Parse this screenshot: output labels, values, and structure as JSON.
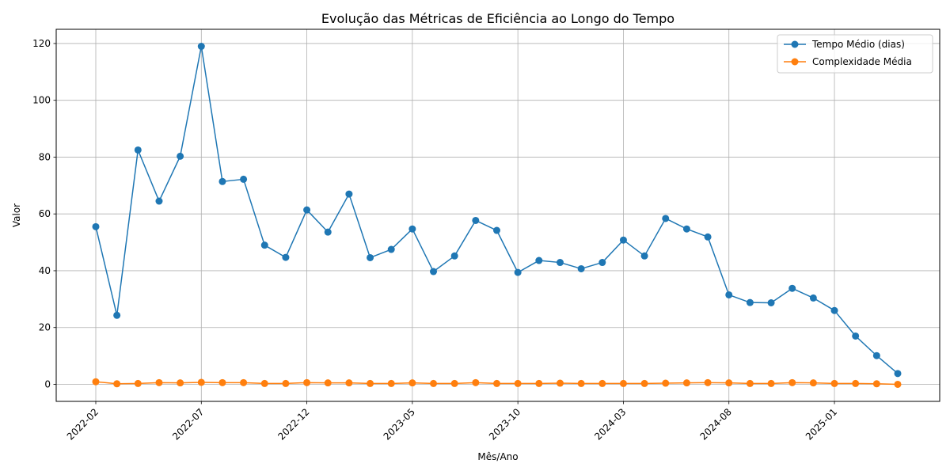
{
  "chart_data": {
    "type": "line",
    "title": "Evolução das Métricas de Eficiência ao Longo do Tempo",
    "xlabel": "Mês/Ano",
    "ylabel": "Valor",
    "x": [
      "2022-02",
      "2022-03",
      "2022-04",
      "2022-05",
      "2022-06",
      "2022-07",
      "2022-08",
      "2022-09",
      "2022-10",
      "2022-11",
      "2022-12",
      "2023-01",
      "2023-02",
      "2023-03",
      "2023-04",
      "2023-05",
      "2023-06",
      "2023-07",
      "2023-08",
      "2023-09",
      "2023-10",
      "2023-11",
      "2023-12",
      "2024-01",
      "2024-02",
      "2024-03",
      "2024-04",
      "2024-05",
      "2024-06",
      "2024-07",
      "2024-08",
      "2024-09",
      "2024-10",
      "2024-11",
      "2024-12",
      "2025-01",
      "2025-02",
      "2025-03",
      "2025-04"
    ],
    "xticks": [
      "2022-02",
      "2022-07",
      "2022-12",
      "2023-05",
      "2023-10",
      "2024-03",
      "2024-08",
      "2025-01"
    ],
    "ylim": [
      -6,
      125
    ],
    "yticks": [
      0,
      20,
      40,
      60,
      80,
      100,
      120
    ],
    "grid": true,
    "legend_position": "top-right",
    "series": [
      {
        "name": "Tempo Médio (dias)",
        "color": "#1f77b4",
        "values": [
          55.5,
          24.3,
          82.5,
          64.5,
          80.3,
          119.0,
          71.4,
          72.2,
          49.0,
          44.7,
          61.4,
          53.6,
          67.0,
          44.6,
          47.5,
          54.7,
          39.7,
          45.2,
          57.7,
          54.2,
          39.4,
          43.6,
          42.9,
          40.7,
          42.9,
          50.8,
          45.2,
          58.4,
          54.7,
          51.9,
          31.5,
          28.8,
          28.7,
          33.8,
          30.4,
          26.0,
          17.0,
          10.1,
          3.8
        ]
      },
      {
        "name": "Complexidade Média",
        "color": "#ff7f0e",
        "values": [
          0.9,
          0.2,
          0.3,
          0.6,
          0.5,
          0.7,
          0.6,
          0.6,
          0.3,
          0.3,
          0.6,
          0.5,
          0.5,
          0.3,
          0.3,
          0.5,
          0.3,
          0.3,
          0.6,
          0.3,
          0.3,
          0.3,
          0.4,
          0.3,
          0.3,
          0.3,
          0.3,
          0.4,
          0.5,
          0.6,
          0.5,
          0.3,
          0.3,
          0.6,
          0.5,
          0.3,
          0.3,
          0.2,
          0.0
        ]
      }
    ]
  }
}
